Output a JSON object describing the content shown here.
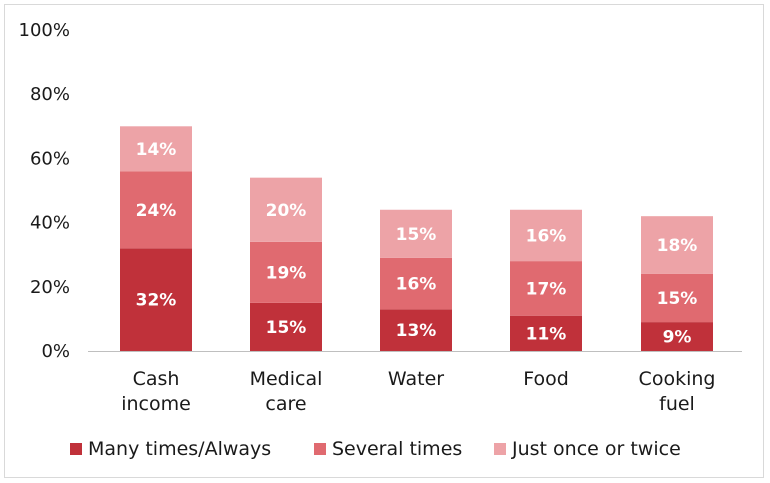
{
  "chart_data": {
    "type": "bar",
    "stacked": true,
    "title": "",
    "xlabel": "",
    "ylabel": "",
    "ylim": [
      0,
      100
    ],
    "y_ticks": [
      "0%",
      "20%",
      "40%",
      "60%",
      "80%",
      "100%"
    ],
    "y_tick_values": [
      0,
      20,
      40,
      60,
      80,
      100
    ],
    "grid": false,
    "legend_position": "bottom",
    "categories": [
      [
        "Cash",
        "income"
      ],
      [
        "Medical",
        "care"
      ],
      [
        "Water"
      ],
      [
        "Food"
      ],
      [
        "Cooking",
        "fuel"
      ]
    ],
    "series": [
      {
        "name": "Many times/Always",
        "color": "#c0313a",
        "values": [
          32,
          15,
          13,
          11,
          9
        ],
        "labels": [
          "32%",
          "15%",
          "13%",
          "11%",
          "9%"
        ]
      },
      {
        "name": "Several times",
        "color": "#e06a70",
        "values": [
          24,
          19,
          16,
          17,
          15
        ],
        "labels": [
          "24%",
          "19%",
          "16%",
          "17%",
          "15%"
        ]
      },
      {
        "name": "Just once or twice",
        "color": "#eda3a7",
        "values": [
          14,
          20,
          15,
          16,
          18
        ],
        "labels": [
          "14%",
          "20%",
          "15%",
          "16%",
          "18%"
        ]
      }
    ]
  }
}
